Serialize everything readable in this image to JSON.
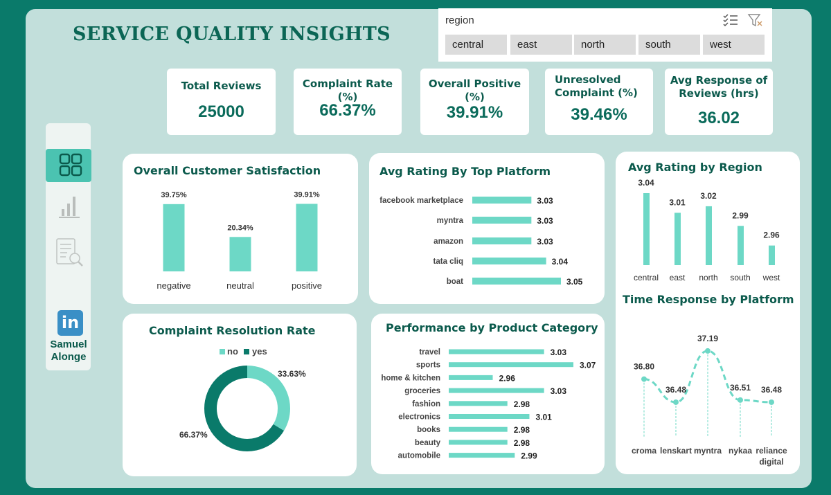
{
  "dashboard": {
    "title": "SERVICE QUALITY INSIGHTS",
    "author": "Samuel Alonge",
    "colors": {
      "background": "#0a7a6a",
      "frame": "#c2dfdb",
      "bar": "#6dd8c6",
      "dark": "#0a7a6a",
      "title": "#0b6655"
    }
  },
  "slicer": {
    "header": "region",
    "icons": [
      "multi-select-icon",
      "clear-filter-icon"
    ],
    "options": [
      "central",
      "east",
      "north",
      "south",
      "west"
    ]
  },
  "kpis": [
    {
      "label": "Total Reviews",
      "value": "25000"
    },
    {
      "label": "Complaint Rate (%)",
      "value": "66.37%"
    },
    {
      "label": "Overall Positive (%)",
      "value": "39.91%"
    },
    {
      "label": "Unresolved Complaint (%)",
      "value": "39.46%"
    },
    {
      "label": "Avg Response of Reviews (hrs)",
      "value": "36.02"
    }
  ],
  "sidebar": {
    "icons": [
      "dashboard-icon",
      "bar-chart-icon",
      "report-search-icon",
      "linkedin-icon"
    ]
  },
  "panels": {
    "satisfaction": "Overall Customer Satisfaction",
    "platform": "Avg Rating By Top Platform",
    "region": "Avg Rating by Region",
    "resolution": "Complaint Resolution Rate",
    "category": "Performance by Product Category",
    "response": "Time Response by Platform"
  },
  "chart_data": [
    {
      "id": "satisfaction",
      "type": "bar",
      "title": "Overall Customer Satisfaction",
      "categories": [
        "negative",
        "neutral",
        "positive"
      ],
      "values": [
        39.75,
        20.34,
        39.91
      ],
      "labels": [
        "39.75%",
        "20.34%",
        "39.91%"
      ],
      "ylim": [
        0,
        45
      ]
    },
    {
      "id": "platform",
      "type": "bar",
      "orientation": "horizontal",
      "title": "Avg Rating By Top Platform",
      "categories": [
        "facebook marketplace",
        "myntra",
        "amazon",
        "tata cliq",
        "boat"
      ],
      "values": [
        3.03,
        3.03,
        3.03,
        3.04,
        3.05
      ],
      "labels": [
        "3.03",
        "3.03",
        "3.03",
        "3.04",
        "3.05"
      ],
      "xlim": [
        2.99,
        3.05
      ]
    },
    {
      "id": "region",
      "type": "bar",
      "title": "Avg Rating by Region",
      "categories": [
        "central",
        "east",
        "north",
        "south",
        "west"
      ],
      "values": [
        3.04,
        3.01,
        3.02,
        2.99,
        2.96
      ],
      "labels": [
        "3.04",
        "3.01",
        "3.02",
        "2.99",
        "2.96"
      ],
      "ylim": [
        2.93,
        3.04
      ]
    },
    {
      "id": "resolution",
      "type": "pie",
      "title": "Complaint Resolution Rate",
      "legend": [
        "no",
        "yes"
      ],
      "legend_position": "top",
      "values": [
        33.63,
        66.37
      ],
      "labels": [
        "33.63%",
        "66.37%"
      ],
      "colors": [
        "#6dd8c6",
        "#0a7a6a"
      ]
    },
    {
      "id": "category",
      "type": "bar",
      "orientation": "horizontal",
      "title": "Performance by Product Category",
      "categories": [
        "travel",
        "sports",
        "home & kitchen",
        "groceries",
        "fashion",
        "electronics",
        "books",
        "beauty",
        "automobile"
      ],
      "values": [
        3.03,
        3.07,
        2.96,
        3.03,
        2.98,
        3.01,
        2.98,
        2.98,
        2.99
      ],
      "labels": [
        "3.03",
        "3.07",
        "2.96",
        "3.03",
        "2.98",
        "3.01",
        "2.98",
        "2.98",
        "2.99"
      ],
      "xlim": [
        2.9,
        3.07
      ]
    },
    {
      "id": "response",
      "type": "line",
      "title": "Time Response by Platform",
      "categories": [
        "croma",
        "lenskart",
        "myntra",
        "nykaa",
        "reliance digital"
      ],
      "values": [
        36.8,
        36.48,
        37.19,
        36.51,
        36.48
      ],
      "labels": [
        "36.80",
        "36.48",
        "37.19",
        "36.51",
        "36.48"
      ],
      "ylim": [
        36.0,
        37.4
      ]
    }
  ]
}
